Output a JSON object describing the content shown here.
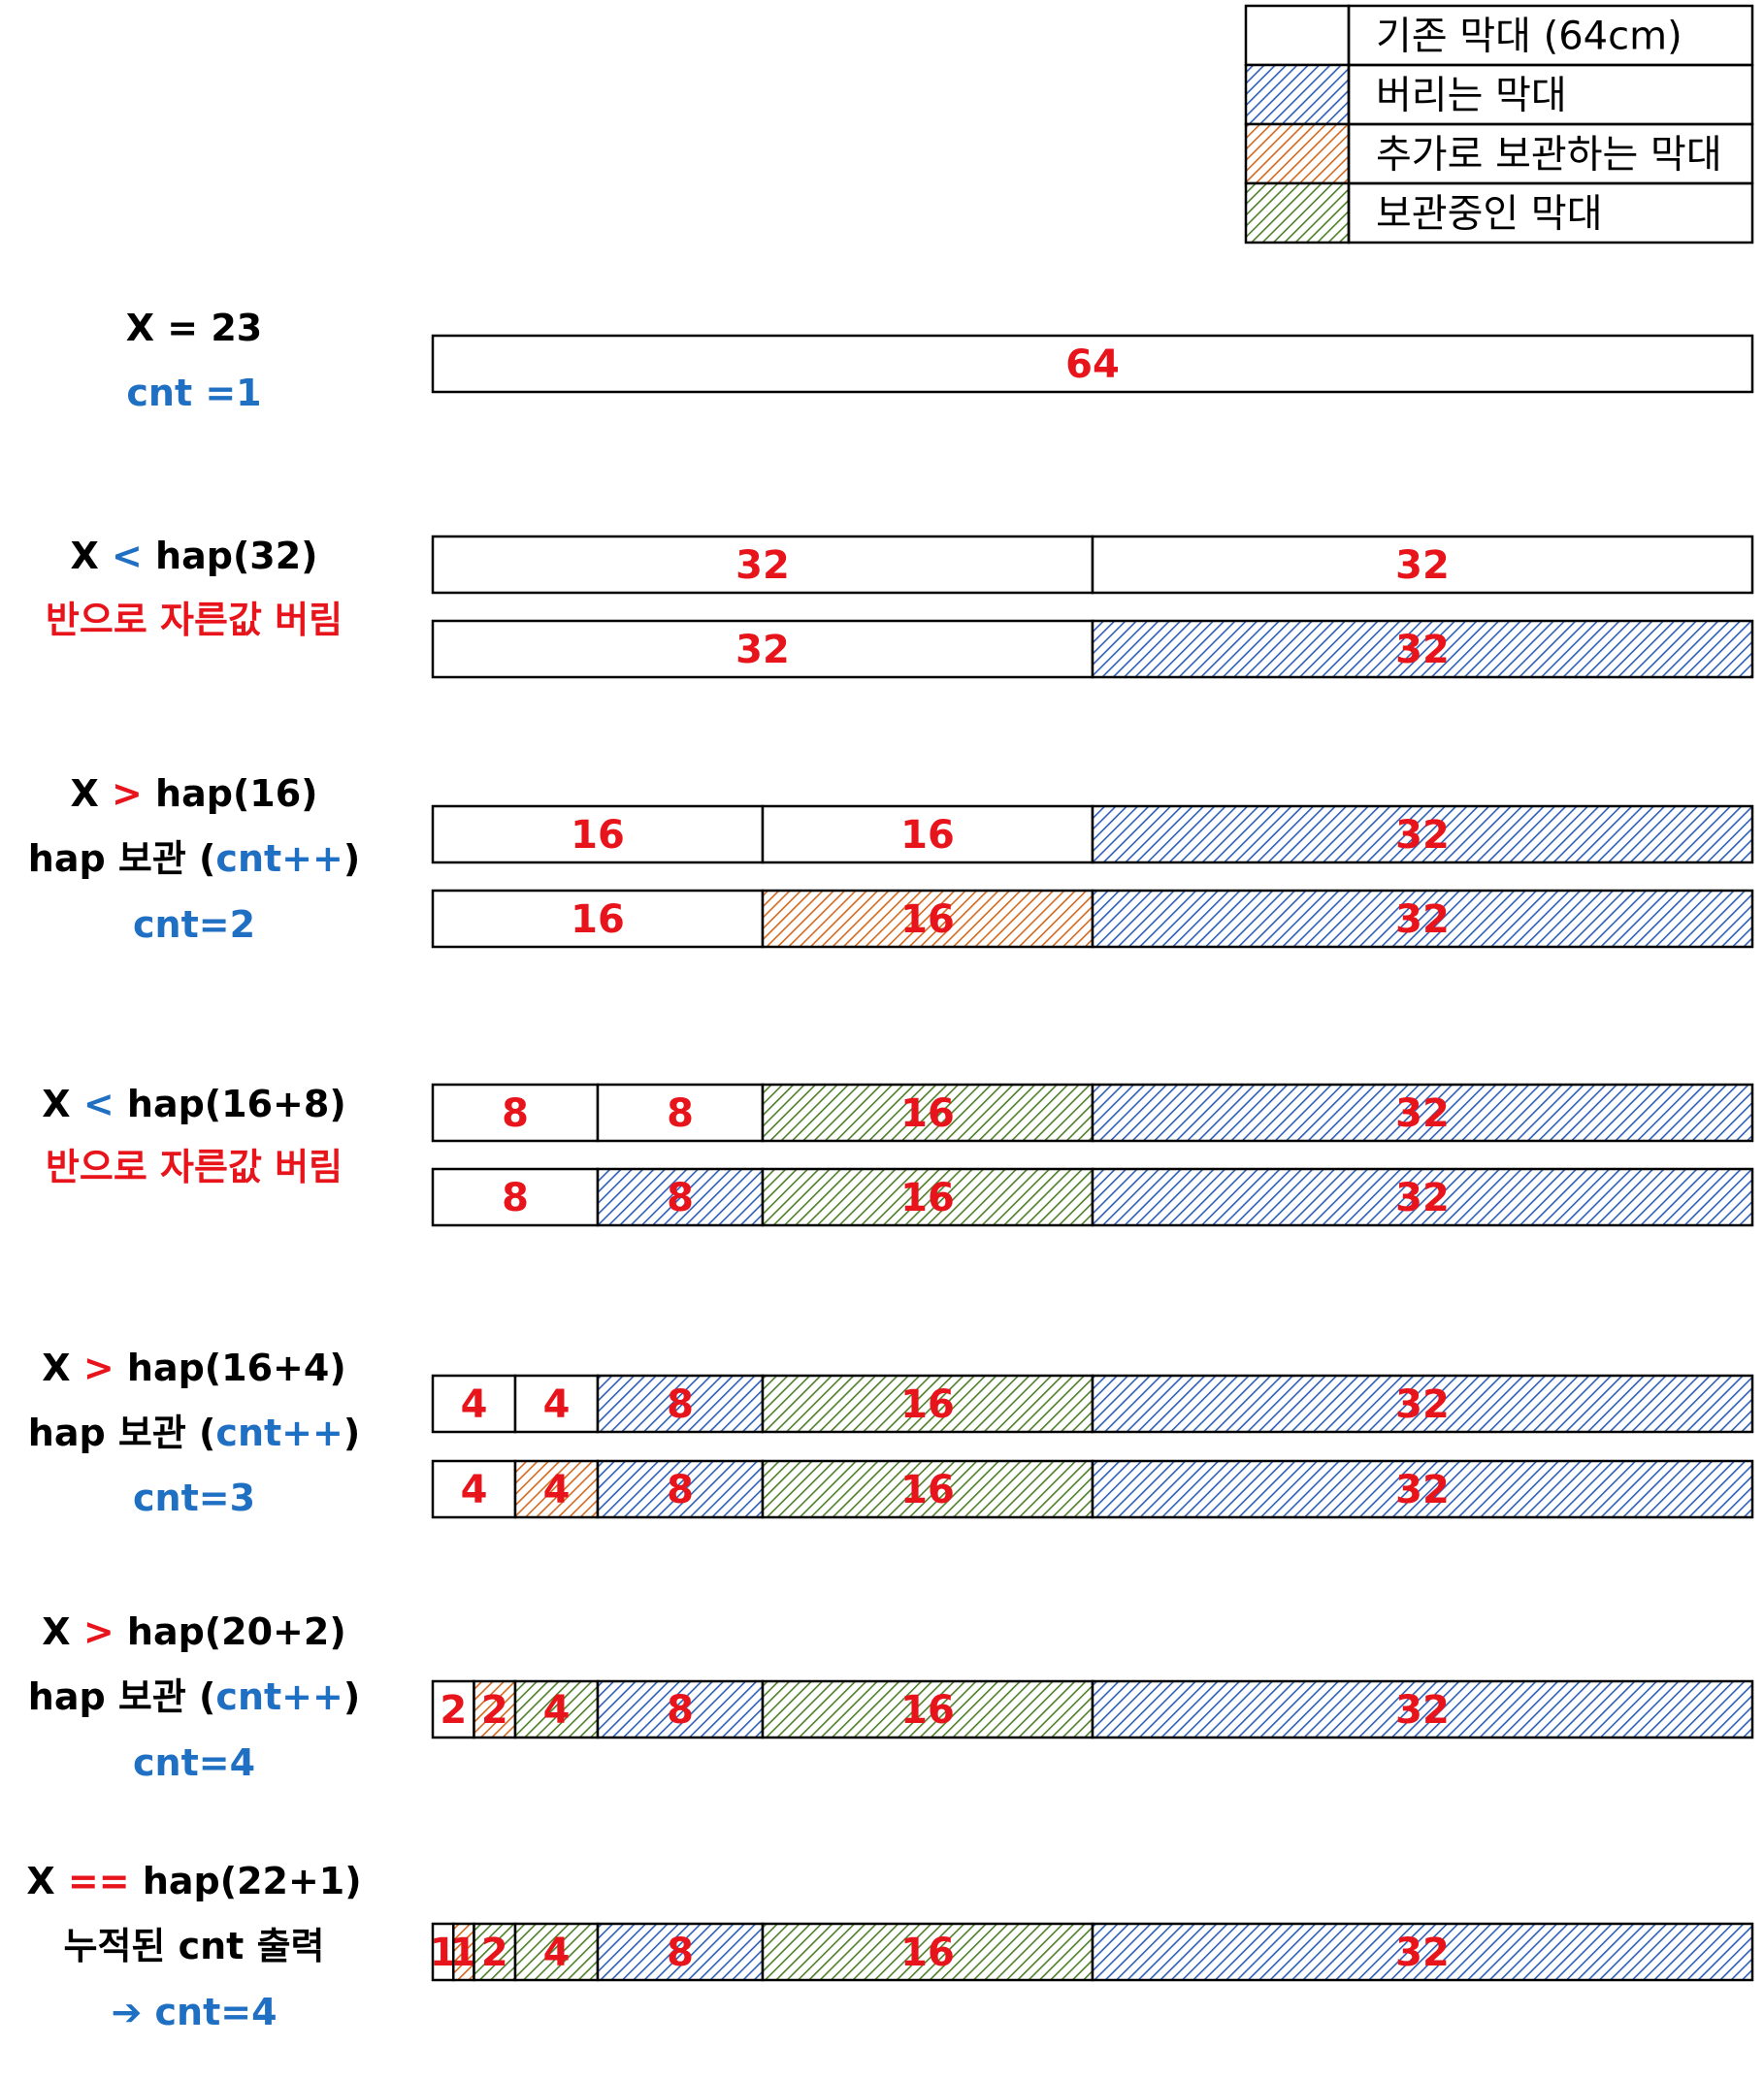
{
  "colors": {
    "black": "#000000",
    "blue": "#1f6fc3",
    "red": "#e8141b",
    "hatch_blue": "#2e5fb8",
    "hatch_orange": "#d2691e",
    "hatch_green": "#4f7f2a"
  },
  "legend": [
    {
      "fill": "none",
      "label": "기존 막대 (64cm)"
    },
    {
      "fill": "blue",
      "label": "버리는 막대"
    },
    {
      "fill": "orange",
      "label": "추가로 보관하는 막대"
    },
    {
      "fill": "green",
      "label": "보관중인 막대"
    }
  ],
  "steps": [
    {
      "lines": [
        [
          {
            "t": "X = 23",
            "c": "black"
          }
        ],
        [
          {
            "t": "cnt =1",
            "c": "blue"
          }
        ]
      ],
      "bars": [
        [
          {
            "v": 64,
            "label": "64",
            "fill": "none"
          }
        ]
      ]
    },
    {
      "lines": [
        [
          {
            "t": "X ",
            "c": "black"
          },
          {
            "t": "<",
            "c": "blue"
          },
          {
            "t": "  hap(32)",
            "c": "black"
          }
        ],
        [
          {
            "t": "반으로 자른값 버림",
            "c": "red"
          }
        ]
      ],
      "bars": [
        [
          {
            "v": 32,
            "label": "32",
            "fill": "none"
          },
          {
            "v": 32,
            "label": "32",
            "fill": "none"
          }
        ],
        [
          {
            "v": 32,
            "label": "32",
            "fill": "none"
          },
          {
            "v": 32,
            "label": "32",
            "fill": "blue"
          }
        ]
      ]
    },
    {
      "lines": [
        [
          {
            "t": "X ",
            "c": "black"
          },
          {
            "t": ">",
            "c": "red"
          },
          {
            "t": " hap(16)",
            "c": "black"
          }
        ],
        [
          {
            "t": "hap 보관 (",
            "c": "black"
          },
          {
            "t": "cnt++",
            "c": "blue"
          },
          {
            "t": ")",
            "c": "black"
          }
        ],
        [
          {
            "t": "cnt=2",
            "c": "blue"
          }
        ]
      ],
      "bars": [
        [
          {
            "v": 16,
            "label": "16",
            "fill": "none"
          },
          {
            "v": 16,
            "label": "16",
            "fill": "none"
          },
          {
            "v": 32,
            "label": "32",
            "fill": "blue"
          }
        ],
        [
          {
            "v": 16,
            "label": "16",
            "fill": "none"
          },
          {
            "v": 16,
            "label": "16",
            "fill": "orange"
          },
          {
            "v": 32,
            "label": "32",
            "fill": "blue"
          }
        ]
      ]
    },
    {
      "lines": [
        [
          {
            "t": "X ",
            "c": "black"
          },
          {
            "t": "<",
            "c": "blue"
          },
          {
            "t": "  hap(16+8)",
            "c": "black"
          }
        ],
        [
          {
            "t": "반으로 자른값 버림",
            "c": "red"
          }
        ]
      ],
      "bars": [
        [
          {
            "v": 8,
            "label": "8",
            "fill": "none"
          },
          {
            "v": 8,
            "label": "8",
            "fill": "none"
          },
          {
            "v": 16,
            "label": "16",
            "fill": "green"
          },
          {
            "v": 32,
            "label": "32",
            "fill": "blue"
          }
        ],
        [
          {
            "v": 8,
            "label": "8",
            "fill": "none"
          },
          {
            "v": 8,
            "label": "8",
            "fill": "blue"
          },
          {
            "v": 16,
            "label": "16",
            "fill": "green"
          },
          {
            "v": 32,
            "label": "32",
            "fill": "blue"
          }
        ]
      ]
    },
    {
      "lines": [
        [
          {
            "t": "X ",
            "c": "black"
          },
          {
            "t": ">",
            "c": "red"
          },
          {
            "t": " hap(16+4)",
            "c": "black"
          }
        ],
        [
          {
            "t": "hap 보관 (",
            "c": "black"
          },
          {
            "t": "cnt++",
            "c": "blue"
          },
          {
            "t": ")",
            "c": "black"
          }
        ],
        [
          {
            "t": "cnt=3",
            "c": "blue"
          }
        ]
      ],
      "bars": [
        [
          {
            "v": 4,
            "label": "4",
            "fill": "none"
          },
          {
            "v": 4,
            "label": "4",
            "fill": "none"
          },
          {
            "v": 8,
            "label": "8",
            "fill": "blue"
          },
          {
            "v": 16,
            "label": "16",
            "fill": "green"
          },
          {
            "v": 32,
            "label": "32",
            "fill": "blue"
          }
        ],
        [
          {
            "v": 4,
            "label": "4",
            "fill": "none"
          },
          {
            "v": 4,
            "label": "4",
            "fill": "orange"
          },
          {
            "v": 8,
            "label": "8",
            "fill": "blue"
          },
          {
            "v": 16,
            "label": "16",
            "fill": "green"
          },
          {
            "v": 32,
            "label": "32",
            "fill": "blue"
          }
        ]
      ]
    },
    {
      "lines": [
        [
          {
            "t": "X ",
            "c": "black"
          },
          {
            "t": ">",
            "c": "red"
          },
          {
            "t": " hap(20+2)",
            "c": "black"
          }
        ],
        [
          {
            "t": "hap 보관 (",
            "c": "black"
          },
          {
            "t": "cnt++",
            "c": "blue"
          },
          {
            "t": ")",
            "c": "black"
          }
        ],
        [
          {
            "t": "cnt=4",
            "c": "blue"
          }
        ]
      ],
      "bars": [
        [
          {
            "v": 2,
            "label": "2",
            "fill": "none"
          },
          {
            "v": 2,
            "label": "2",
            "fill": "orange"
          },
          {
            "v": 4,
            "label": "4",
            "fill": "green"
          },
          {
            "v": 8,
            "label": "8",
            "fill": "blue"
          },
          {
            "v": 16,
            "label": "16",
            "fill": "green"
          },
          {
            "v": 32,
            "label": "32",
            "fill": "blue"
          }
        ]
      ]
    },
    {
      "lines": [
        [
          {
            "t": "X ",
            "c": "black"
          },
          {
            "t": "==",
            "c": "red"
          },
          {
            "t": " hap(22+1)",
            "c": "black"
          }
        ],
        [
          {
            "t": "누적된 cnt 출력",
            "c": "black"
          }
        ],
        [
          {
            "t": "➔ cnt=4",
            "c": "blue"
          }
        ]
      ],
      "bars": [
        [
          {
            "v": 1,
            "label": "1",
            "fill": "none"
          },
          {
            "v": 1,
            "label": "1",
            "fill": "orange"
          },
          {
            "v": 2,
            "label": "2",
            "fill": "green"
          },
          {
            "v": 4,
            "label": "4",
            "fill": "green"
          },
          {
            "v": 8,
            "label": "8",
            "fill": "blue"
          },
          {
            "v": 16,
            "label": "16",
            "fill": "green"
          },
          {
            "v": 32,
            "label": "32",
            "fill": "blue"
          }
        ]
      ]
    }
  ]
}
